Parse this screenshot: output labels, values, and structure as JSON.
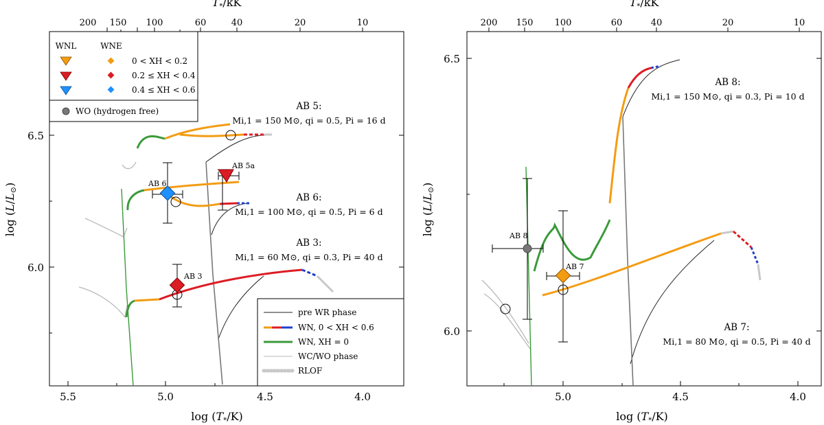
{
  "chart_data": [
    {
      "type": "line",
      "panel": "left",
      "xlabel": "log (T*/K)",
      "ylabel": "log (L/L⊙)",
      "top_xlabel": "T*/kK",
      "xlim": [
        5.5,
        3.8
      ],
      "ylim": [
        5.55,
        6.83
      ],
      "x_ticks": [
        "5.5",
        "5.0",
        "4.5",
        "4.0"
      ],
      "y_ticks": [
        "6.0",
        "6.5"
      ],
      "top_ticks": [
        "200",
        "150",
        "100",
        "60",
        "40",
        "20",
        "10"
      ],
      "legend_markers": {
        "headers": [
          "WNL",
          "WNE"
        ],
        "rows": [
          "0 < XH < 0.2",
          "0.2 ≤ XH < 0.4",
          "0.4 ≤ XH < 0.6"
        ],
        "wo": "WO (hydrogen free)"
      },
      "legend_lines": [
        "pre WR phase",
        "WN, 0 < XH < 0.6",
        "WN, XH = 0",
        "WC/WO phase",
        "RLOF"
      ],
      "annotations": [
        {
          "title": "AB 5:",
          "text": "Mi,1 = 150 M⊙, qi = 0.5, Pi = 16 d"
        },
        {
          "title": "AB 6:",
          "text": "Mi,1 = 100 M⊙, qi = 0.5, Pi = 6 d"
        },
        {
          "title": "AB 3:",
          "text": "Mi,1 = 60 M⊙, qi = 0.3, Pi = 40 d"
        }
      ],
      "observed_stars": [
        {
          "name": "AB 5a",
          "logT": 4.64,
          "logL": 6.34,
          "type": "WNL",
          "XH_class": "0.2 ≤ XH < 0.4",
          "color": "#dc1c24"
        },
        {
          "name": "AB 6",
          "logT": 4.93,
          "logL": 6.28,
          "type": "WNE",
          "XH_class": "0.4 ≤ XH < 0.6",
          "color": "#1e90ff"
        },
        {
          "name": "AB 3",
          "logT": 4.9,
          "logL": 5.93,
          "type": "WNE",
          "XH_class": "0.2 ≤ XH < 0.4",
          "color": "#dc1c24"
        }
      ]
    },
    {
      "type": "line",
      "panel": "right",
      "xlabel": "log (T*/K)",
      "ylabel": "log (L/L⊙)",
      "top_xlabel": "T*/kK",
      "xlim": [
        5.35,
        3.9
      ],
      "ylim": [
        5.8,
        6.62
      ],
      "x_ticks": [
        "5.0",
        "4.5",
        "4.0"
      ],
      "y_ticks": [
        "6.0",
        "6.5"
      ],
      "top_ticks": [
        "200",
        "150",
        "100",
        "60",
        "40",
        "20",
        "10"
      ],
      "annotations": [
        {
          "title": "AB 8:",
          "text": "Mi,1 = 150 M⊙, qi = 0.3, Pi = 10 d"
        },
        {
          "title": "AB 7:",
          "text": "Mi,1 = 80 M⊙, qi = 0.5, Pi = 40 d"
        }
      ],
      "observed_stars": [
        {
          "name": "AB 8",
          "logT": 5.17,
          "logL": 6.15,
          "type": "WO",
          "color": "#777777"
        },
        {
          "name": "AB 7",
          "logT": 5.0,
          "logL": 6.11,
          "type": "WNE",
          "XH_class": "0 < XH < 0.2",
          "color": "#f39c12"
        }
      ]
    }
  ],
  "colors": {
    "pre_wr": "#111111",
    "wn_h": "#f39c12",
    "wn_h_mid": "#dc1c24",
    "wn_h_high": "#1f3fd1",
    "wn_h0": "#3a9a3a",
    "wc_wo": "#b8b8b8",
    "rlof": "#c8c8c8"
  }
}
